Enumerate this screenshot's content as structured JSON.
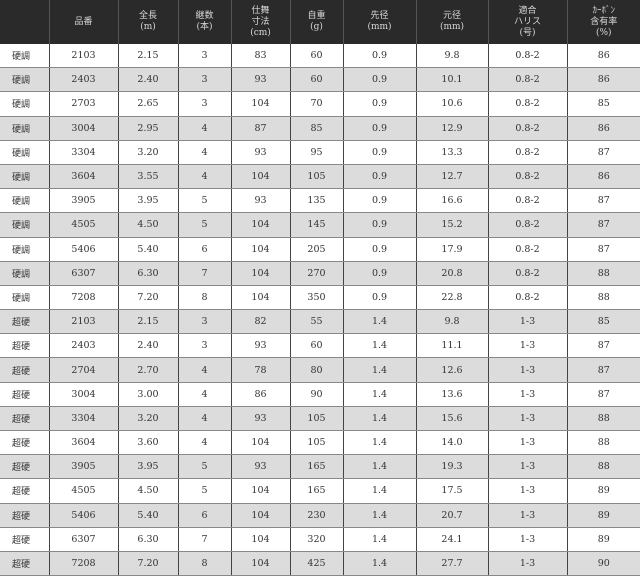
{
  "headers": [
    "",
    "品番",
    "全長\n(m)",
    "継数\n(本)",
    "仕舞\n寸法\n(cm)",
    "自重\n(g)",
    "先径\n(mm)",
    "元径\n(mm)",
    "適合\nハリス\n(号)",
    "ｶｰﾎﾞﾝ\n含有率\n(%)"
  ],
  "rows": [
    [
      "硬調",
      "2103",
      "2.15",
      "3",
      "83",
      "60",
      "0.9",
      "9.8",
      "0.8-2",
      "86"
    ],
    [
      "硬調",
      "2403",
      "2.40",
      "3",
      "93",
      "60",
      "0.9",
      "10.1",
      "0.8-2",
      "86"
    ],
    [
      "硬調",
      "2703",
      "2.65",
      "3",
      "104",
      "70",
      "0.9",
      "10.6",
      "0.8-2",
      "85"
    ],
    [
      "硬調",
      "3004",
      "2.95",
      "4",
      "87",
      "85",
      "0.9",
      "12.9",
      "0.8-2",
      "86"
    ],
    [
      "硬調",
      "3304",
      "3.20",
      "4",
      "93",
      "95",
      "0.9",
      "13.3",
      "0.8-2",
      "87"
    ],
    [
      "硬調",
      "3604",
      "3.55",
      "4",
      "104",
      "105",
      "0.9",
      "12.7",
      "0.8-2",
      "86"
    ],
    [
      "硬調",
      "3905",
      "3.95",
      "5",
      "93",
      "135",
      "0.9",
      "16.6",
      "0.8-2",
      "87"
    ],
    [
      "硬調",
      "4505",
      "4.50",
      "5",
      "104",
      "145",
      "0.9",
      "15.2",
      "0.8-2",
      "87"
    ],
    [
      "硬調",
      "5406",
      "5.40",
      "6",
      "104",
      "205",
      "0.9",
      "17.9",
      "0.8-2",
      "87"
    ],
    [
      "硬調",
      "6307",
      "6.30",
      "7",
      "104",
      "270",
      "0.9",
      "20.8",
      "0.8-2",
      "88"
    ],
    [
      "硬調",
      "7208",
      "7.20",
      "8",
      "104",
      "350",
      "0.9",
      "22.8",
      "0.8-2",
      "88"
    ],
    [
      "超硬",
      "2103",
      "2.15",
      "3",
      "82",
      "55",
      "1.4",
      "9.8",
      "1-3",
      "85"
    ],
    [
      "超硬",
      "2403",
      "2.40",
      "3",
      "93",
      "60",
      "1.4",
      "11.1",
      "1-3",
      "87"
    ],
    [
      "超硬",
      "2704",
      "2.70",
      "4",
      "78",
      "80",
      "1.4",
      "12.6",
      "1-3",
      "87"
    ],
    [
      "超硬",
      "3004",
      "3.00",
      "4",
      "86",
      "90",
      "1.4",
      "13.6",
      "1-3",
      "87"
    ],
    [
      "超硬",
      "3304",
      "3.20",
      "4",
      "93",
      "105",
      "1.4",
      "15.6",
      "1-3",
      "88"
    ],
    [
      "超硬",
      "3604",
      "3.60",
      "4",
      "104",
      "105",
      "1.4",
      "14.0",
      "1-3",
      "88"
    ],
    [
      "超硬",
      "3905",
      "3.95",
      "5",
      "93",
      "165",
      "1.4",
      "19.3",
      "1-3",
      "88"
    ],
    [
      "超硬",
      "4505",
      "4.50",
      "5",
      "104",
      "165",
      "1.4",
      "17.5",
      "1-3",
      "89"
    ],
    [
      "超硬",
      "5406",
      "5.40",
      "6",
      "104",
      "230",
      "1.4",
      "20.7",
      "1-3",
      "89"
    ],
    [
      "超硬",
      "6307",
      "6.30",
      "7",
      "104",
      "320",
      "1.4",
      "24.1",
      "1-3",
      "89"
    ],
    [
      "超硬",
      "7208",
      "7.20",
      "8",
      "104",
      "425",
      "1.4",
      "27.7",
      "1-3",
      "90"
    ]
  ]
}
